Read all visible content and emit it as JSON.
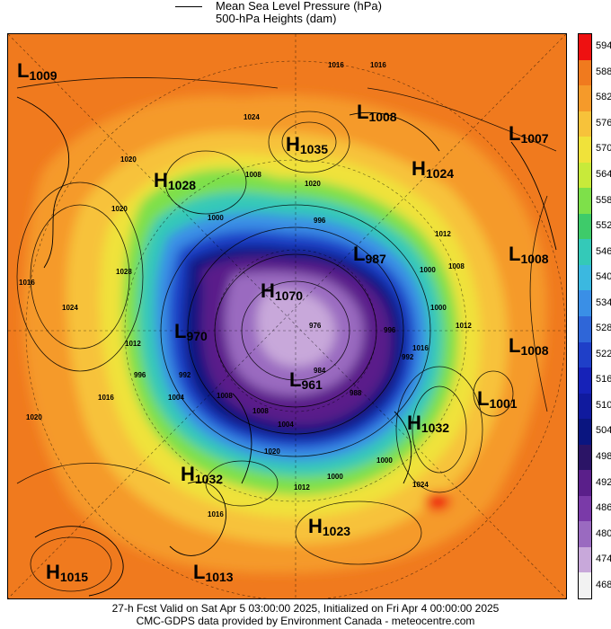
{
  "legend": {
    "line1": "Mean Sea Level Pressure (hPa)",
    "line2": "500-hPa Heights (dam)"
  },
  "colorbar": {
    "labels": [
      "594",
      "588",
      "582",
      "576",
      "570",
      "564",
      "558",
      "552",
      "546",
      "540",
      "534",
      "528",
      "522",
      "516",
      "510",
      "504",
      "498",
      "492",
      "486",
      "480",
      "474",
      "468"
    ],
    "colors": [
      "#ee1111",
      "#f07a1e",
      "#f59a2a",
      "#f7c23a",
      "#f0e23a",
      "#c8ea3a",
      "#7ee04a",
      "#3ecb6a",
      "#34c9b8",
      "#3bb8e0",
      "#3a8fe6",
      "#2f66d8",
      "#1f3fc8",
      "#1622b8",
      "#101a9e",
      "#0a1580",
      "#2b1466",
      "#5a1f8a",
      "#7a3aa8",
      "#9a6ac0",
      "#c8a8da",
      "#f2f2f2"
    ]
  },
  "pressure_systems": [
    {
      "type": "L",
      "value": "1009"
    },
    {
      "type": "L",
      "value": "1008"
    },
    {
      "type": "H",
      "value": "1035"
    },
    {
      "type": "L",
      "value": "1007"
    },
    {
      "type": "H",
      "value": "1028"
    },
    {
      "type": "H",
      "value": "1024"
    },
    {
      "type": "L",
      "value": "1008"
    },
    {
      "type": "L",
      "value": "987"
    },
    {
      "type": "H",
      "value": "1070"
    },
    {
      "type": "L",
      "value": "970"
    },
    {
      "type": "L",
      "value": "1008"
    },
    {
      "type": "L",
      "value": "961"
    },
    {
      "type": "L",
      "value": "1001"
    },
    {
      "type": "H",
      "value": "1032"
    },
    {
      "type": "H",
      "value": "1032"
    },
    {
      "type": "H",
      "value": "1023"
    },
    {
      "type": "H",
      "value": "1015"
    },
    {
      "type": "L",
      "value": "1013"
    }
  ],
  "contour_labels": [
    "1016",
    "1016",
    "1024",
    "1008",
    "1020",
    "1000",
    "996",
    "1012",
    "1000",
    "1008",
    "1016",
    "1020",
    "1028",
    "1024",
    "1016",
    "1012",
    "996",
    "992",
    "1004",
    "1008",
    "1020",
    "996",
    "1000",
    "992",
    "1000",
    "1008",
    "1016",
    "1012",
    "1000",
    "1024",
    "1016",
    "1020",
    "984",
    "976",
    "1004",
    "1012",
    "988",
    "1020"
  ],
  "footer": {
    "line1": "27-h Fcst Valid on Sat Apr  5 03:00:00 2025, Initialized on Fri Apr  4 00:00:00 2025",
    "line2": "CMC-GDPS data provided by Environment Canada - meteocentre.com"
  }
}
